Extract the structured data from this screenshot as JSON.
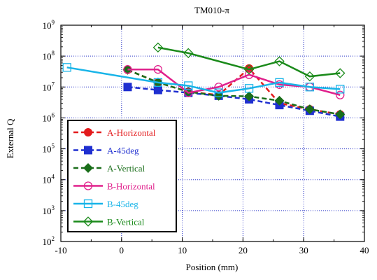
{
  "chart_data": {
    "type": "line",
    "title": "TM010-π",
    "xlabel": "Position (mm)",
    "ylabel": "External Q",
    "xlim": [
      -10,
      40
    ],
    "ylim_log10": [
      2,
      9
    ],
    "y_scale": "log",
    "x_ticks": [
      "-10",
      "0",
      "10",
      "20",
      "30",
      "40"
    ],
    "y_tick_exponents": [
      2,
      3,
      4,
      5,
      6,
      7,
      8,
      9
    ],
    "y_tick_base": "10",
    "grid": true,
    "legend_position": "bottom-left",
    "series": [
      {
        "name": "A-Horizontal",
        "color": "#e31a1c",
        "marker": "circle-filled",
        "dashed": true,
        "x": [
          1,
          6,
          11,
          16,
          21,
          26,
          31,
          36
        ],
        "y": [
          36000000,
          14000000,
          7000000,
          5500000,
          40000000,
          3000000,
          1900000,
          1300000
        ]
      },
      {
        "name": "A-45deg",
        "color": "#1f2fd0",
        "marker": "square-filled",
        "dashed": true,
        "x": [
          1,
          6,
          11,
          16,
          21,
          26,
          31,
          36
        ],
        "y": [
          10000000,
          8000000,
          6500000,
          5200000,
          4000000,
          2600000,
          1700000,
          1100000
        ]
      },
      {
        "name": "A-Vertical",
        "color": "#1a6e1a",
        "marker": "diamond-filled",
        "dashed": true,
        "x": [
          1,
          6,
          11,
          16,
          21,
          26,
          31,
          36
        ],
        "y": [
          36000000,
          14000000,
          7000000,
          5200000,
          5000000,
          3600000,
          1900000,
          1300000
        ]
      },
      {
        "name": "B-Horizontal",
        "color": "#e0208c",
        "marker": "circle-open",
        "dashed": false,
        "x": [
          1,
          6,
          11,
          16,
          21,
          26,
          31,
          36
        ],
        "y": [
          37000000,
          37000000,
          6500000,
          10000000,
          25000000,
          12000000,
          10000000,
          5500000
        ]
      },
      {
        "name": "B-45deg",
        "color": "#18b4e8",
        "marker": "square-open",
        "dashed": false,
        "x": [
          -9,
          6,
          11,
          16,
          21,
          26,
          31,
          36
        ],
        "y": [
          43000000,
          14000000,
          11000000,
          6500000,
          9000000,
          14000000,
          10000000,
          8500000
        ]
      },
      {
        "name": "B-Vertical",
        "color": "#1a8a1a",
        "marker": "diamond-open",
        "dashed": false,
        "x": [
          6,
          11,
          21,
          26,
          31,
          36
        ],
        "y": [
          190000000,
          125000000,
          37000000,
          68000000,
          22000000,
          28000000
        ]
      }
    ]
  }
}
